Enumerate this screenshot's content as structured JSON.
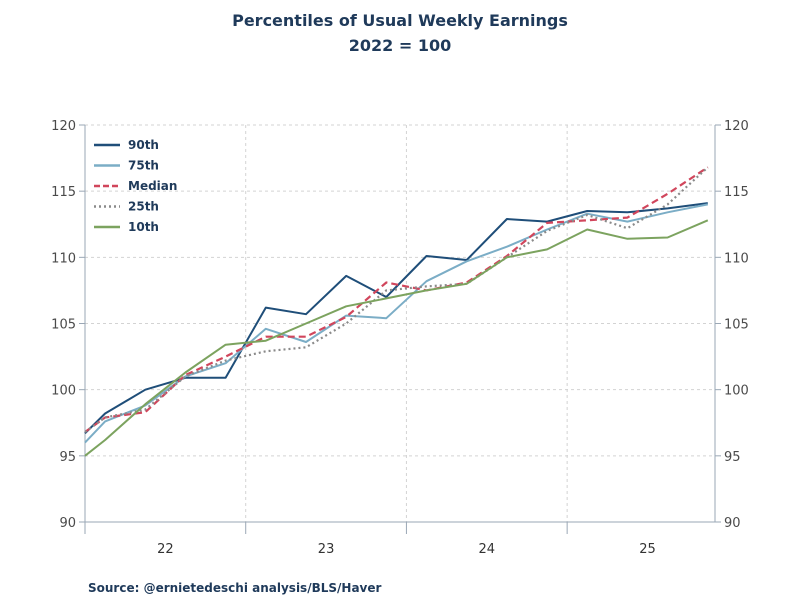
{
  "chart_data": {
    "type": "line",
    "title": "Percentiles of Usual Weekly Earnings",
    "subtitle": "2022 = 100",
    "source": "Source:  @ernietedeschi analysis/BLS/Haver",
    "x_tick_labels": [
      "22",
      "23",
      "24",
      "25"
    ],
    "x_range": [
      2022.0,
      2025.92
    ],
    "ylim": [
      90,
      120
    ],
    "y_ticks": [
      90,
      95,
      100,
      105,
      110,
      115,
      120
    ],
    "dual_y_axis": true,
    "grid": true,
    "legend_position": "top-left",
    "x": [
      2022.0,
      2022.125,
      2022.375,
      2022.625,
      2022.875,
      2023.125,
      2023.375,
      2023.625,
      2023.875,
      2024.125,
      2024.375,
      2024.625,
      2024.875,
      2025.125,
      2025.375,
      2025.625,
      2025.875
    ],
    "series": [
      {
        "name": "90th",
        "color": "#1f4e79",
        "dash": "solid",
        "values": [
          96.7,
          98.2,
          100.0,
          100.9,
          100.9,
          106.2,
          105.7,
          108.6,
          107.0,
          110.1,
          109.8,
          112.9,
          112.7,
          113.5,
          113.4,
          113.7,
          114.1
        ]
      },
      {
        "name": "75th",
        "color": "#7badc6",
        "dash": "solid",
        "values": [
          96.0,
          97.6,
          98.8,
          101.0,
          102.0,
          104.6,
          103.6,
          105.6,
          105.4,
          108.2,
          109.7,
          110.8,
          112.1,
          113.3,
          112.7,
          113.4,
          114.0
        ]
      },
      {
        "name": "Median",
        "color": "#d1465c",
        "dash": "dashed",
        "values": [
          96.8,
          97.9,
          98.3,
          101.1,
          102.5,
          104.0,
          104.0,
          105.5,
          108.1,
          107.5,
          108.1,
          110.1,
          112.6,
          112.8,
          113.0,
          114.8,
          116.8
        ]
      },
      {
        "name": "25th",
        "color": "#8a8a8a",
        "dash": "dotted",
        "values": [
          96.8,
          97.9,
          98.5,
          101.0,
          102.2,
          102.9,
          103.2,
          105.0,
          107.5,
          107.8,
          108.0,
          110.0,
          112.0,
          113.2,
          112.2,
          114.0,
          116.8
        ]
      },
      {
        "name": "10th",
        "color": "#7ca35f",
        "dash": "solid",
        "values": [
          95.0,
          96.2,
          98.9,
          101.3,
          103.4,
          103.7,
          105.0,
          106.3,
          106.9,
          107.5,
          108.0,
          110.0,
          110.6,
          112.1,
          111.4,
          111.5,
          112.8
        ]
      }
    ]
  }
}
